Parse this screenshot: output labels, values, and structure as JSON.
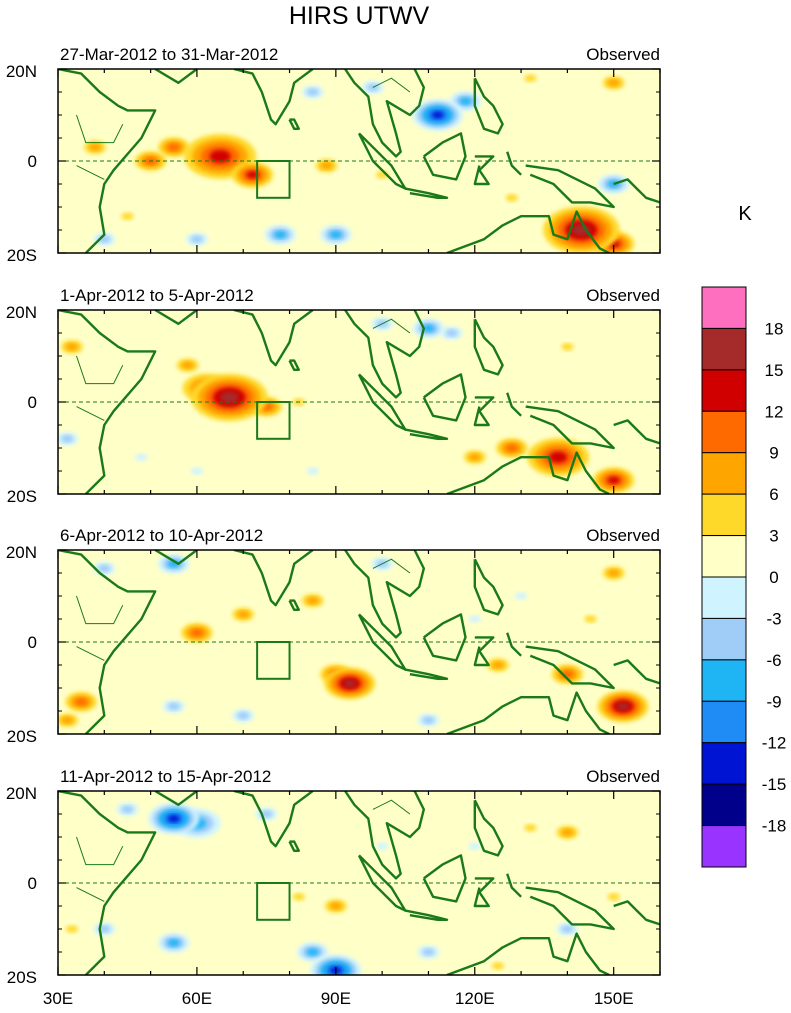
{
  "chart_data": {
    "type": "heatmap",
    "title": "HIRS UTWV",
    "colorbar": {
      "unit": "K",
      "levels": [
        18,
        15,
        12,
        9,
        6,
        3,
        0,
        -3,
        -6,
        -9,
        -12,
        -15,
        -18
      ],
      "colors": [
        "#ff6fbf",
        "#a52a2a",
        "#d10000",
        "#ff6a00",
        "#ffa500",
        "#ffd92a",
        "#ffffc8",
        "#d0f4ff",
        "#a0ccf8",
        "#1fb5f5",
        "#1f8cf5",
        "#0014d4",
        "#00008b",
        "#9933ff"
      ]
    },
    "x_ticks": [
      "30E",
      "60E",
      "90E",
      "120E",
      "150E"
    ],
    "x_values": [
      30,
      60,
      90,
      120,
      150
    ],
    "xlim": [
      30,
      160
    ],
    "y_ticks": [
      "20N",
      "0",
      "20S"
    ],
    "y_values": [
      20,
      0,
      -20
    ],
    "ylim": [
      -20,
      20
    ],
    "panels": [
      {
        "period": "27-Mar-2012 to 31-Mar-2012",
        "label": "Observed",
        "blobs": [
          {
            "lon": 65,
            "lat": 1,
            "r": 3.5,
            "v": 12
          },
          {
            "lon": 72,
            "lat": -3,
            "r": 2.0,
            "v": 12
          },
          {
            "lon": 55,
            "lat": 3,
            "r": 2.0,
            "v": 9
          },
          {
            "lon": 38,
            "lat": 3,
            "r": 2.0,
            "v": 6
          },
          {
            "lon": 50,
            "lat": 0,
            "r": 2.0,
            "v": 9
          },
          {
            "lon": 88,
            "lat": -1,
            "r": 2.0,
            "v": 6
          },
          {
            "lon": 100,
            "lat": -3,
            "r": 2.0,
            "v": 3
          },
          {
            "lon": 45,
            "lat": -12,
            "r": 2.0,
            "v": 3
          },
          {
            "lon": 112,
            "lat": 10,
            "r": 2.0,
            "v": -15
          },
          {
            "lon": 118,
            "lat": 13,
            "r": 2.0,
            "v": -9
          },
          {
            "lon": 85,
            "lat": 15,
            "r": 2.0,
            "v": -6
          },
          {
            "lon": 98,
            "lat": 16,
            "r": 2.0,
            "v": -6
          },
          {
            "lon": 132,
            "lat": 18,
            "r": 2.0,
            "v": 3
          },
          {
            "lon": 150,
            "lat": 17,
            "r": 2.0,
            "v": 6
          },
          {
            "lon": 150,
            "lat": -5,
            "r": 2.0,
            "v": -9
          },
          {
            "lon": 143,
            "lat": -15,
            "r": 3.0,
            "v": 15
          },
          {
            "lon": 150,
            "lat": -18,
            "r": 2.0,
            "v": 12
          },
          {
            "lon": 78,
            "lat": -16,
            "r": 2.0,
            "v": -9
          },
          {
            "lon": 90,
            "lat": -16,
            "r": 2.0,
            "v": -9
          },
          {
            "lon": 60,
            "lat": -17,
            "r": 2.0,
            "v": -6
          },
          {
            "lon": 40,
            "lat": -17,
            "r": 2.0,
            "v": -6
          },
          {
            "lon": 128,
            "lat": -8,
            "r": 2.0,
            "v": 3
          }
        ]
      },
      {
        "period": "1-Apr-2012 to 5-Apr-2012",
        "label": "Observed",
        "blobs": [
          {
            "lon": 67,
            "lat": 1,
            "r": 3.0,
            "v": 15
          },
          {
            "lon": 62,
            "lat": 3,
            "r": 3.0,
            "v": 9
          },
          {
            "lon": 75,
            "lat": -1,
            "r": 2.0,
            "v": 9
          },
          {
            "lon": 58,
            "lat": 8,
            "r": 2.0,
            "v": 6
          },
          {
            "lon": 82,
            "lat": 0,
            "r": 2.0,
            "v": 3
          },
          {
            "lon": 33,
            "lat": 12,
            "r": 2.0,
            "v": 6
          },
          {
            "lon": 138,
            "lat": -12,
            "r": 3.0,
            "v": 12
          },
          {
            "lon": 150,
            "lat": -17,
            "r": 2.0,
            "v": 12
          },
          {
            "lon": 128,
            "lat": -10,
            "r": 2.0,
            "v": 9
          },
          {
            "lon": 120,
            "lat": -12,
            "r": 2.0,
            "v": 6
          },
          {
            "lon": 110,
            "lat": 16,
            "r": 2.0,
            "v": -9
          },
          {
            "lon": 115,
            "lat": 15,
            "r": 2.0,
            "v": -6
          },
          {
            "lon": 100,
            "lat": 17,
            "r": 2.0,
            "v": -6
          },
          {
            "lon": 32,
            "lat": -8,
            "r": 2.0,
            "v": -6
          },
          {
            "lon": 48,
            "lat": -12,
            "r": 2.0,
            "v": -3
          },
          {
            "lon": 85,
            "lat": -15,
            "r": 2.0,
            "v": -3
          },
          {
            "lon": 140,
            "lat": 12,
            "r": 2.0,
            "v": 3
          },
          {
            "lon": 100,
            "lat": -8,
            "r": 2.0,
            "v": 0
          },
          {
            "lon": 60,
            "lat": -15,
            "r": 2.0,
            "v": -3
          }
        ]
      },
      {
        "period": "6-Apr-2012 to 10-Apr-2012",
        "label": "Observed",
        "blobs": [
          {
            "lon": 93,
            "lat": -9,
            "r": 2.0,
            "v": 15
          },
          {
            "lon": 90,
            "lat": -7,
            "r": 2.0,
            "v": 9
          },
          {
            "lon": 60,
            "lat": 2,
            "r": 2.0,
            "v": 9
          },
          {
            "lon": 70,
            "lat": 6,
            "r": 2.0,
            "v": 6
          },
          {
            "lon": 85,
            "lat": 9,
            "r": 2.0,
            "v": 6
          },
          {
            "lon": 152,
            "lat": -14,
            "r": 2.0,
            "v": 15
          },
          {
            "lon": 140,
            "lat": -7,
            "r": 2.0,
            "v": 9
          },
          {
            "lon": 125,
            "lat": -5,
            "r": 2.0,
            "v": 6
          },
          {
            "lon": 35,
            "lat": -13,
            "r": 2.0,
            "v": 9
          },
          {
            "lon": 32,
            "lat": -17,
            "r": 2.0,
            "v": 6
          },
          {
            "lon": 55,
            "lat": 17,
            "r": 2.0,
            "v": -9
          },
          {
            "lon": 40,
            "lat": 16,
            "r": 2.0,
            "v": -6
          },
          {
            "lon": 55,
            "lat": -14,
            "r": 2.0,
            "v": -6
          },
          {
            "lon": 70,
            "lat": -16,
            "r": 2.0,
            "v": -6
          },
          {
            "lon": 100,
            "lat": 17,
            "r": 2.0,
            "v": -6
          },
          {
            "lon": 110,
            "lat": -17,
            "r": 2.0,
            "v": -6
          },
          {
            "lon": 130,
            "lat": 10,
            "r": 2.0,
            "v": -3
          },
          {
            "lon": 150,
            "lat": 15,
            "r": 2.0,
            "v": 6
          },
          {
            "lon": 145,
            "lat": 5,
            "r": 2.0,
            "v": 3
          },
          {
            "lon": 120,
            "lat": 5,
            "r": 2.0,
            "v": -3
          }
        ]
      },
      {
        "period": "11-Apr-2012 to 15-Apr-2012",
        "label": "Observed",
        "blobs": [
          {
            "lon": 55,
            "lat": 14,
            "r": 2.0,
            "v": -15
          },
          {
            "lon": 60,
            "lat": 13,
            "r": 3.0,
            "v": -9
          },
          {
            "lon": 45,
            "lat": 16,
            "r": 2.0,
            "v": -6
          },
          {
            "lon": 75,
            "lat": 15,
            "r": 2.0,
            "v": -6
          },
          {
            "lon": 90,
            "lat": -19,
            "r": 2.0,
            "v": -15
          },
          {
            "lon": 85,
            "lat": -15,
            "r": 2.0,
            "v": -9
          },
          {
            "lon": 55,
            "lat": -13,
            "r": 2.0,
            "v": -9
          },
          {
            "lon": 40,
            "lat": -10,
            "r": 2.0,
            "v": -6
          },
          {
            "lon": 110,
            "lat": -15,
            "r": 2.0,
            "v": -6
          },
          {
            "lon": 140,
            "lat": -10,
            "r": 2.0,
            "v": -6
          },
          {
            "lon": 140,
            "lat": 11,
            "r": 2.0,
            "v": 6
          },
          {
            "lon": 132,
            "lat": 12,
            "r": 2.0,
            "v": 3
          },
          {
            "lon": 90,
            "lat": -5,
            "r": 2.0,
            "v": 6
          },
          {
            "lon": 82,
            "lat": -3,
            "r": 2.0,
            "v": 3
          },
          {
            "lon": 33,
            "lat": -10,
            "r": 2.0,
            "v": 3
          },
          {
            "lon": 125,
            "lat": -18,
            "r": 2.0,
            "v": 3
          },
          {
            "lon": 100,
            "lat": 8,
            "r": 2.0,
            "v": -3
          },
          {
            "lon": 120,
            "lat": 8,
            "r": 2.0,
            "v": -3
          },
          {
            "lon": 150,
            "lat": -3,
            "r": 2.0,
            "v": 3
          }
        ]
      }
    ]
  }
}
